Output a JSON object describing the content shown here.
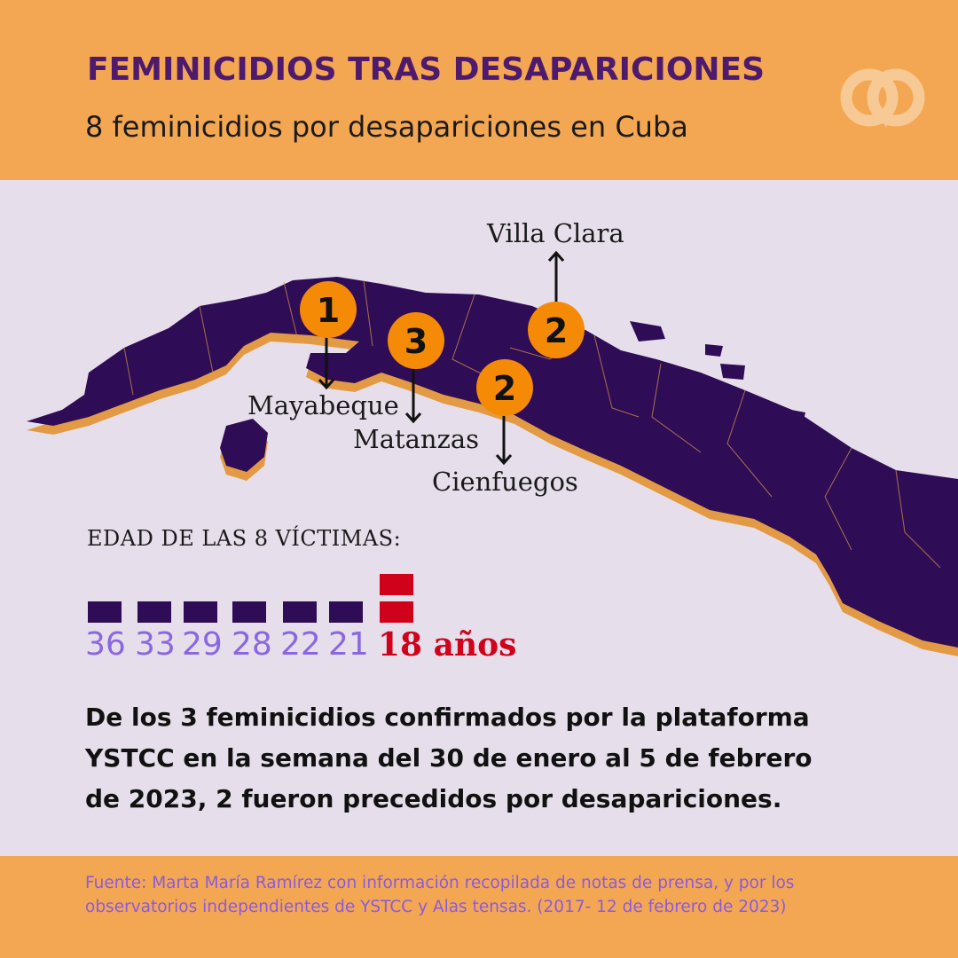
{
  "header": {
    "title": "FEMINICIDIOS TRAS DESAPARICIONES",
    "subtitle": "8 feminicidios por desapariciones  en Cuba"
  },
  "map": {
    "markers": [
      {
        "count": "1",
        "province": "Mayabeque"
      },
      {
        "count": "3",
        "province": "Matanzas"
      },
      {
        "count": "2",
        "province": "Villa Clara"
      },
      {
        "count": "2",
        "province": "Cienfuegos"
      }
    ],
    "colors": {
      "land": "#2e0c56",
      "shadow": "#e39a45",
      "marker": "#f58a07"
    }
  },
  "ages": {
    "heading": "EDAD DE LAS 8 VÍCTIMAS:",
    "items": [
      {
        "label": "36",
        "count": 1
      },
      {
        "label": "33",
        "count": 1
      },
      {
        "label": "29",
        "count": 1
      },
      {
        "label": "28",
        "count": 1
      },
      {
        "label": "22",
        "count": 1
      },
      {
        "label": "21",
        "count": 1
      },
      {
        "label": "18 años",
        "count": 2
      }
    ]
  },
  "statement": "De los 3 feminicidios confirmados por la plataforma YSTCC en la  semana del 30 de enero al 5 de febrero de 2023, 2 fueron precedidos por desapariciones.",
  "footer": {
    "source": "Fuente: Marta María Ramírez con información recopilada de notas de prensa, y por los observatorios independientes de YSTCC y Alas tensas. (2017- 12 de febrero de 2023)"
  },
  "logo": {
    "icon": "linked-rings-logo"
  }
}
